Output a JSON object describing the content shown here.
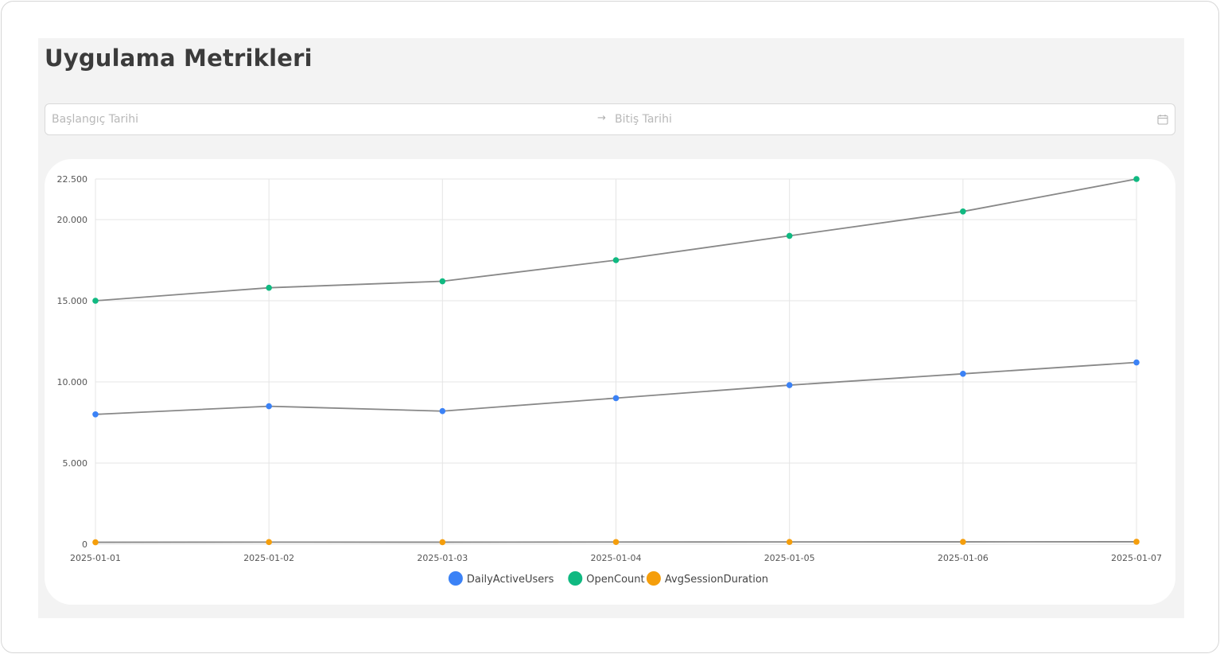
{
  "page": {
    "title": "Uygulama Metrikleri"
  },
  "date_range": {
    "start_placeholder": "Başlangıç Tarihi",
    "end_placeholder": "Bitiş Tarihi",
    "separator_icon": "arrow-right-icon",
    "calendar_icon": "calendar-icon"
  },
  "chart_data": {
    "type": "line",
    "x": [
      "2025-01-01",
      "2025-01-02",
      "2025-01-03",
      "2025-01-04",
      "2025-01-05",
      "2025-01-06",
      "2025-01-07"
    ],
    "ylim": [
      0,
      22500
    ],
    "yticks": [
      0,
      5000,
      10000,
      15000,
      20000,
      22500
    ],
    "ytick_labels": [
      "0",
      "5.000",
      "10.000",
      "15.000",
      "20.000",
      "22.500"
    ],
    "grid": true,
    "legend_position": "bottom",
    "line_color": "#888888",
    "series": [
      {
        "name": "DailyActiveUsers",
        "color": "#3b82f6",
        "values": [
          8000,
          8500,
          8200,
          9000,
          9800,
          10500,
          11200
        ]
      },
      {
        "name": "OpenCount",
        "color": "#10b981",
        "values": [
          15000,
          15800,
          16200,
          17500,
          19000,
          20500,
          22500
        ]
      },
      {
        "name": "AvgSessionDuration",
        "color": "#f59e0b",
        "values": [
          120,
          130,
          125,
          135,
          140,
          145,
          150
        ]
      }
    ]
  }
}
